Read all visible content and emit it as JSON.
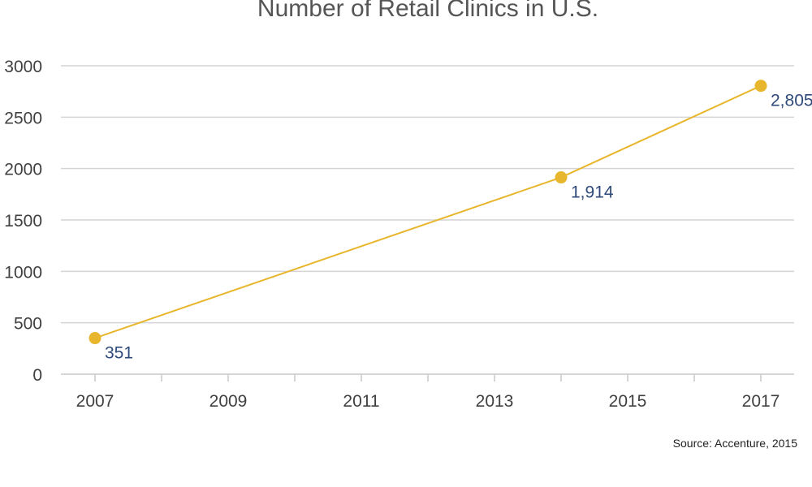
{
  "chart_data": {
    "type": "line",
    "title": "Number of Retail Clinics in U.S.",
    "xlabel": "",
    "ylabel": "",
    "xlim": [
      2006.5,
      2017.5
    ],
    "ylim": [
      0,
      3000
    ],
    "x_ticks": [
      2007,
      2009,
      2011,
      2013,
      2015,
      2017
    ],
    "y_ticks": [
      0,
      500,
      1000,
      1500,
      2000,
      2500,
      3000
    ],
    "grid": true,
    "series": [
      {
        "x": [
          2007,
          2014,
          2017
        ],
        "values": [
          351,
          1914,
          2805
        ],
        "labels": [
          "351",
          "1,914",
          "2,805"
        ],
        "color": "#e8b62c"
      }
    ],
    "source": "Source: Accenture, 2015",
    "colors": {
      "line": "#e8b62c",
      "grid": "#d4d4d4",
      "label": "#2f4a7a"
    }
  }
}
